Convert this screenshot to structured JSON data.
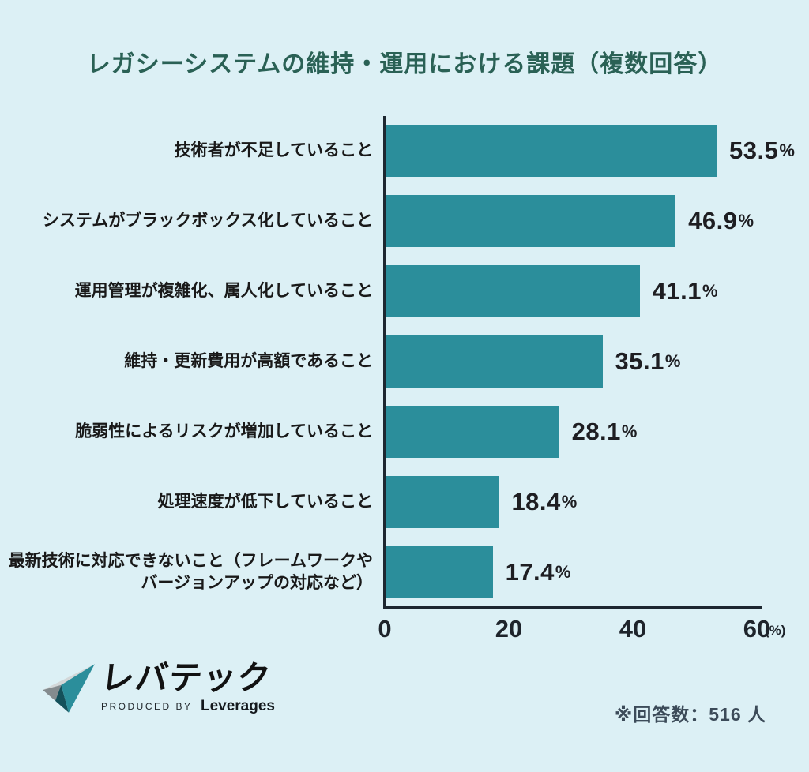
{
  "title": "レガシーシステムの維持・運用における課題（複数回答）",
  "chart_data": {
    "type": "bar",
    "orientation": "horizontal",
    "title": "レガシーシステムの維持・運用における課題（複数回答）",
    "categories": [
      "技術者が不足していること",
      "システムがブラックボックス化していること",
      "運用管理が複雑化、属人化していること",
      "維持・更新費用が高額であること",
      "脆弱性によるリスクが増加していること",
      "処理速度が低下していること",
      "最新技術に対応できないこと（フレームワークや\nバージョンアップの対応など）"
    ],
    "values": [
      53.5,
      46.9,
      41.1,
      35.1,
      28.1,
      18.4,
      17.4
    ],
    "value_labels": [
      "53.5",
      "46.9",
      "41.1",
      "35.1",
      "28.1",
      "18.4",
      "17.4"
    ],
    "unit": "%",
    "xlabel": "(%)",
    "xticks": [
      "0",
      "20",
      "40",
      "60"
    ],
    "xlim": [
      0,
      60
    ],
    "grid": false,
    "legend": false,
    "bar_color": "#2b8e9b",
    "background_color": "#dcf0f5",
    "title_color": "#2a6155"
  },
  "footer": {
    "logo_text": "レバテック",
    "logo_subtext_prefix": "PRODUCED BY",
    "logo_subtext_brand": "Leverages",
    "note": "※回答数：516 人"
  }
}
